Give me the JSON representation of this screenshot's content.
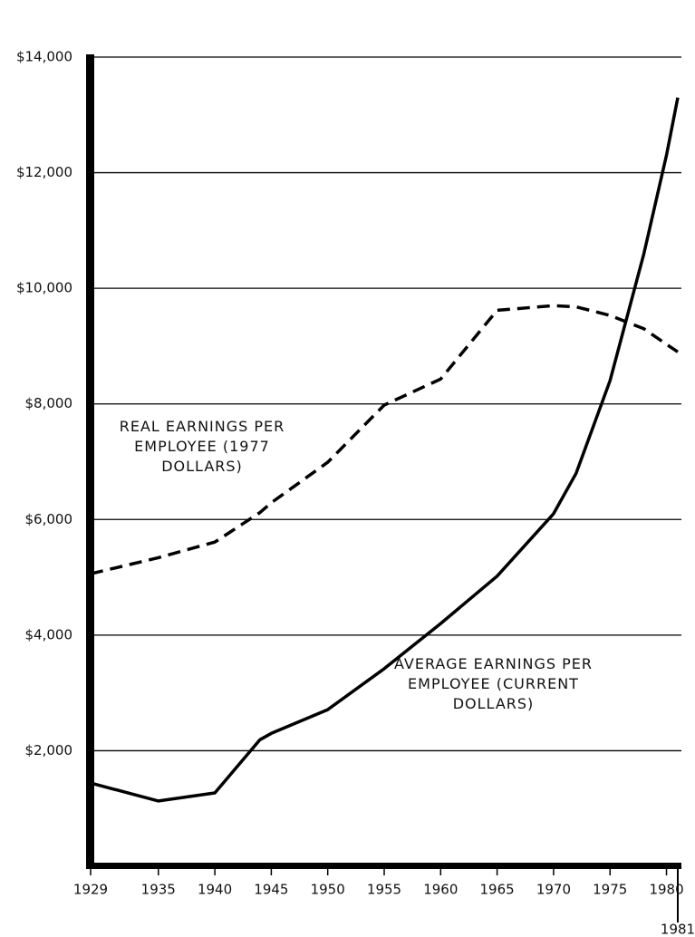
{
  "chart_data": {
    "type": "line",
    "x": [
      1929,
      1935,
      1940,
      1944,
      1945,
      1950,
      1955,
      1960,
      1965,
      1970,
      1972,
      1975,
      1978,
      1980,
      1981
    ],
    "series": [
      {
        "name": "AVERAGE EARNINGS PER EMPLOYEE (CURRENT DOLLARS)",
        "color": "#000000",
        "dashed": false,
        "values": [
          1440,
          1130,
          1270,
          2190,
          2300,
          2710,
          3420,
          4200,
          5020,
          6100,
          6800,
          8400,
          10600,
          12300,
          13300
        ]
      },
      {
        "name": "REAL EARNINGS PER EMPLOYEE (1977 DOLLARS)",
        "color": "#000000",
        "dashed": true,
        "values": [
          5060,
          5340,
          5610,
          6120,
          6290,
          6990,
          7980,
          8430,
          9620,
          9700,
          9680,
          9530,
          9300,
          9030,
          8900
        ]
      }
    ],
    "xlim": [
      1929,
      1981
    ],
    "xticks": [
      1929,
      1935,
      1940,
      1945,
      1950,
      1955,
      1960,
      1965,
      1970,
      1975,
      1980,
      1981
    ],
    "ylim": [
      0,
      14000
    ],
    "yticks": [
      {
        "value": 2000,
        "label": "$2,000"
      },
      {
        "value": 4000,
        "label": "$4,000"
      },
      {
        "value": 6000,
        "label": "$6,000"
      },
      {
        "value": 8000,
        "label": "$8,000"
      },
      {
        "value": 10000,
        "label": "$10,000"
      },
      {
        "value": 12000,
        "label": "$12,000"
      },
      {
        "value": 14000,
        "label": "$14,000"
      }
    ],
    "grid": true
  }
}
